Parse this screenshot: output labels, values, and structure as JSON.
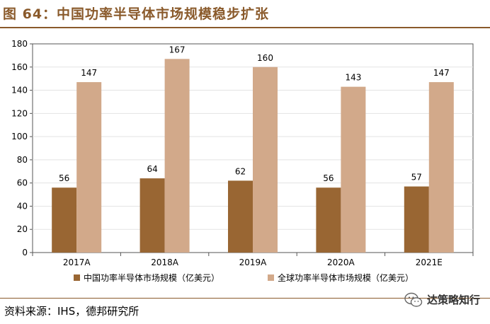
{
  "figure": {
    "title": "图 64：中国功率半导体市场规模稳步扩张",
    "source": "资料来源：IHS，德邦研究所",
    "brand": "达策略知行",
    "brand_icon": "wechat-icon"
  },
  "chart_data": {
    "type": "bar",
    "categories": [
      "2017A",
      "2018A",
      "2019A",
      "2020A",
      "2021E"
    ],
    "series": [
      {
        "name": "中国功率半导体市场规模（亿美元）",
        "values": [
          56,
          64,
          62,
          56,
          57
        ],
        "color": "#996633"
      },
      {
        "name": "全球功率半导体市场规模（亿美元）",
        "values": [
          147,
          167,
          160,
          143,
          147
        ],
        "color": "#d2a98a"
      }
    ],
    "ylim": [
      0,
      180
    ],
    "yticks": [
      0,
      20,
      40,
      60,
      80,
      100,
      120,
      140,
      160,
      180
    ],
    "grid": true,
    "legend": "bottom"
  }
}
